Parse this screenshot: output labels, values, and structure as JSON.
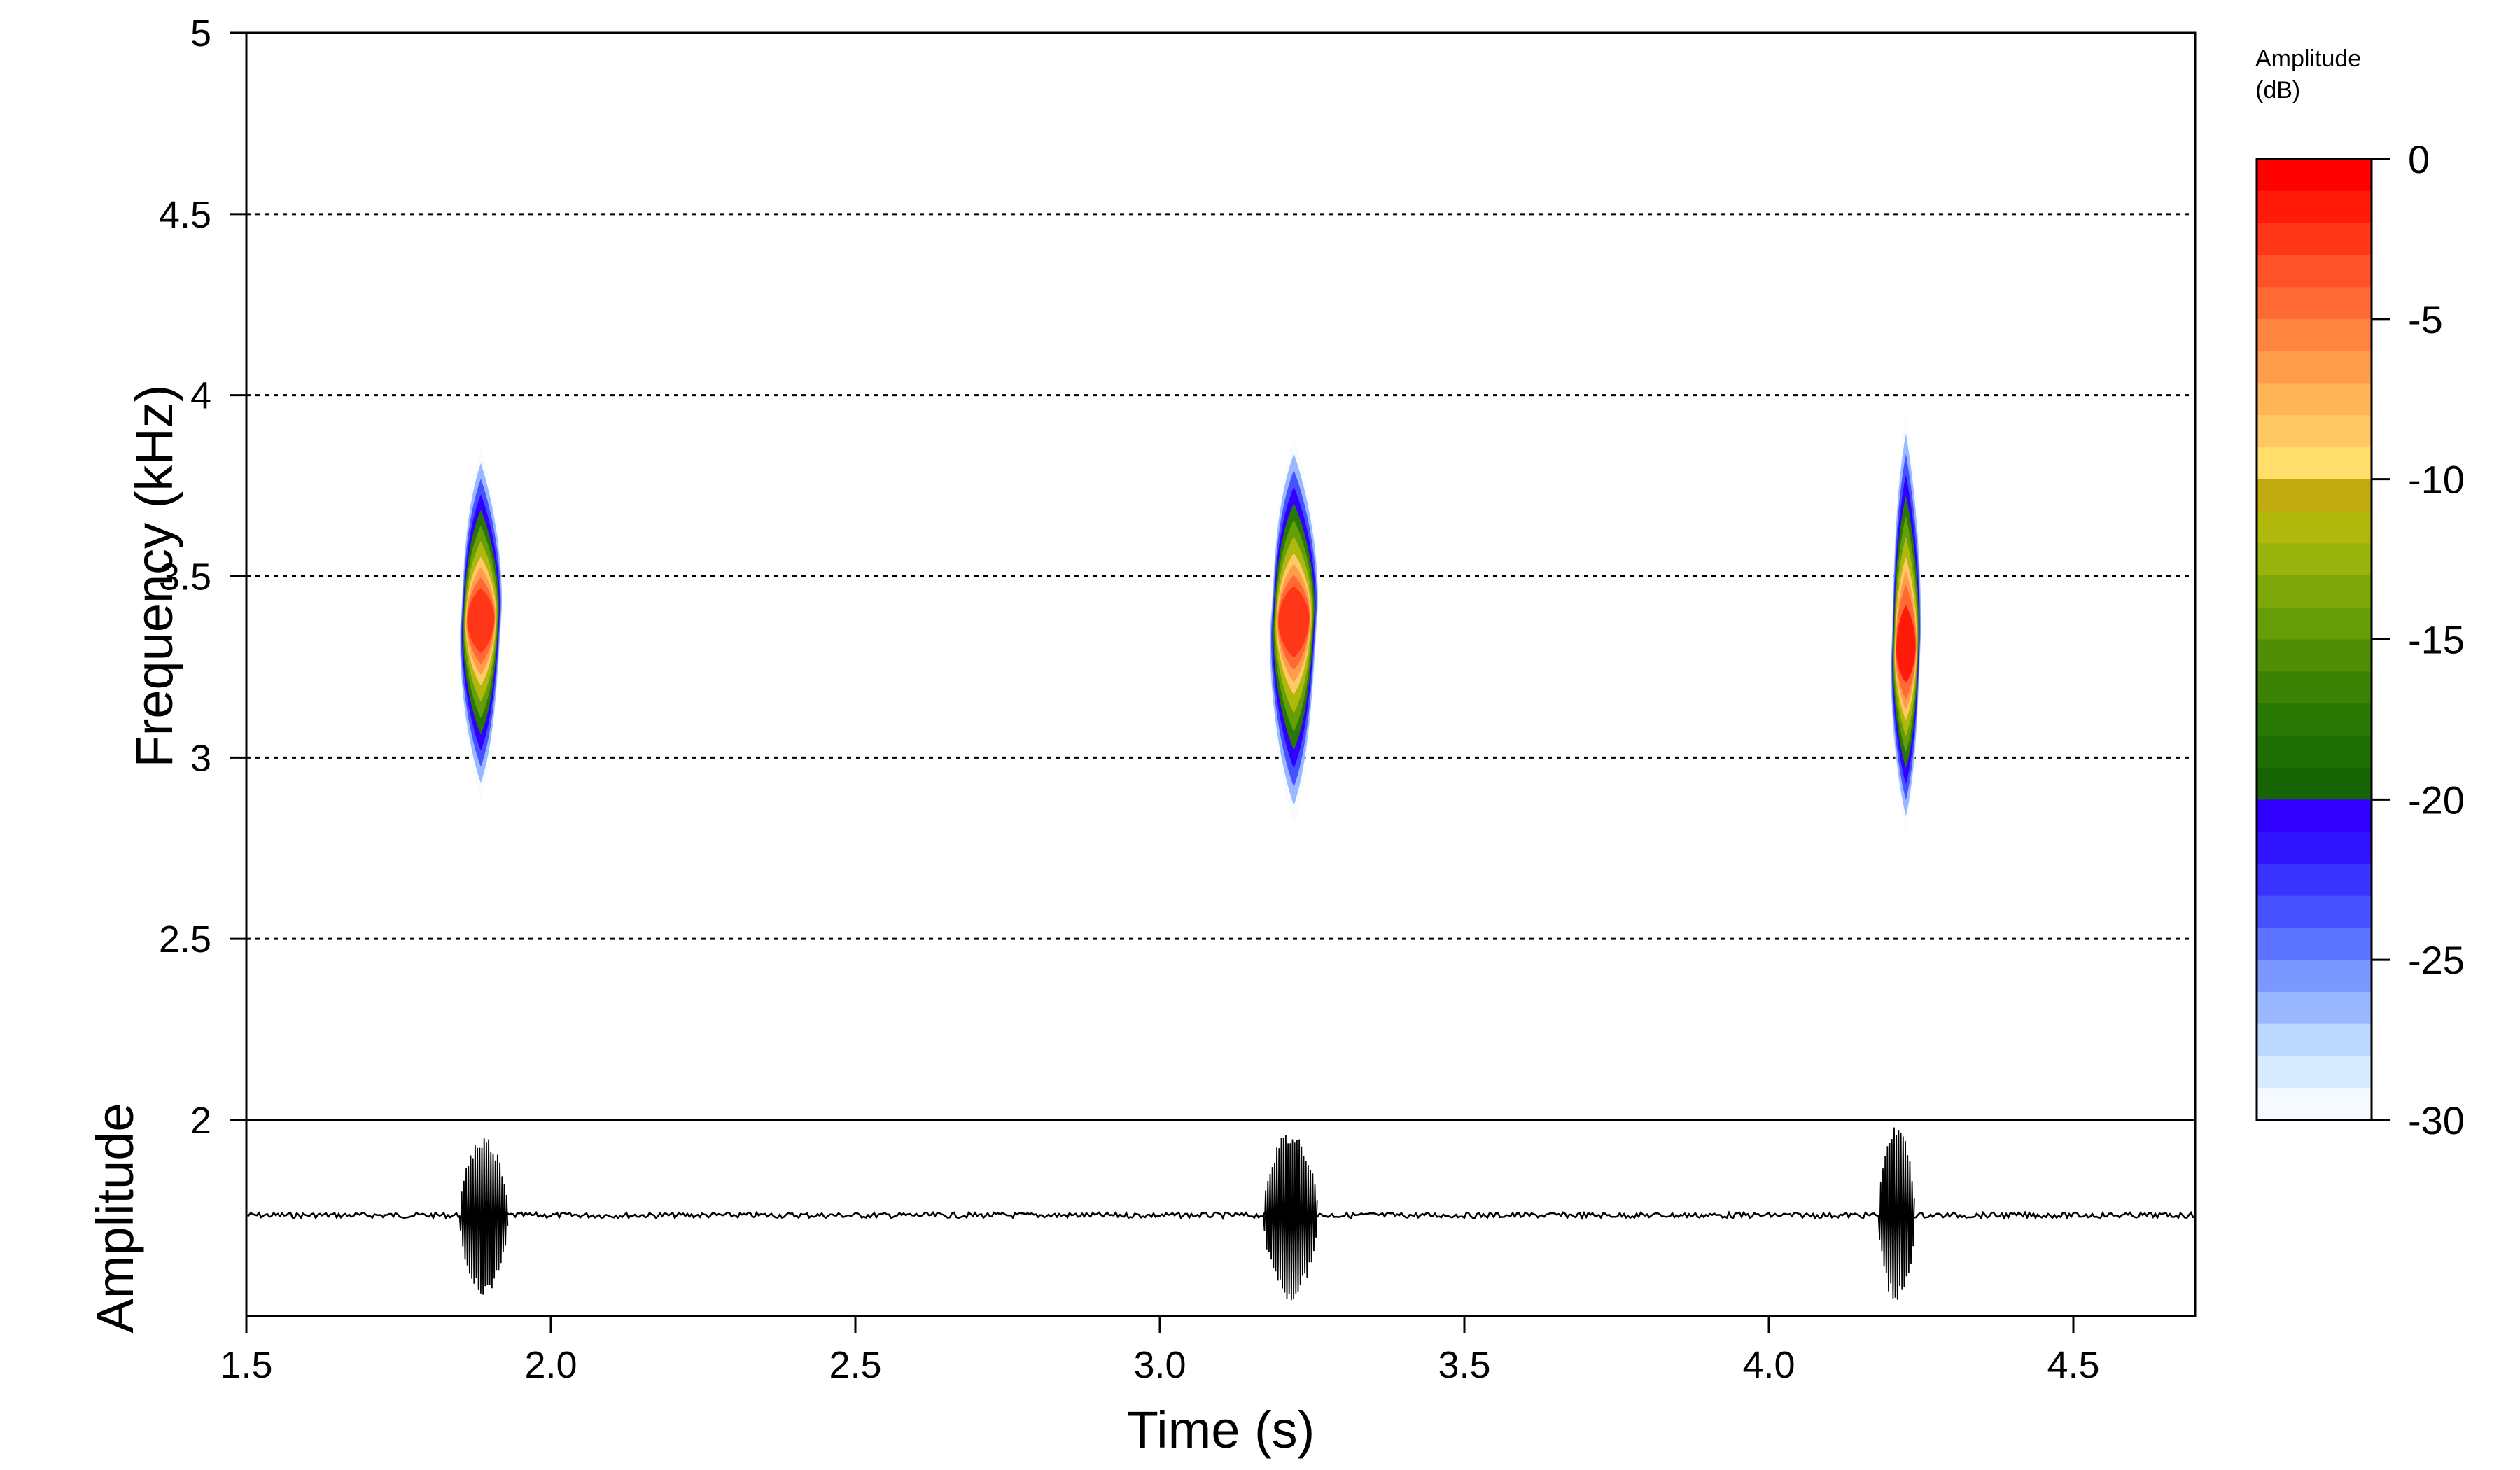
{
  "chart_data": {
    "type": "spectrogram",
    "components": [
      "spectrogram",
      "oscillogram",
      "colorbar"
    ],
    "x": {
      "label": "Time (s)",
      "range": [
        1.5,
        4.7
      ],
      "ticks": [
        1.5,
        2.0,
        2.5,
        3.0,
        3.5,
        4.0,
        4.5
      ],
      "tick_labels": [
        "1.5",
        "2.0",
        "2.5",
        "3.0",
        "3.5",
        "4.0",
        "4.5"
      ]
    },
    "spectrogram": {
      "ylabel": "Frequency (kHz)",
      "ylim": [
        2,
        5
      ],
      "yticks": [
        2,
        2.5,
        3,
        3.5,
        4,
        4.5,
        5
      ],
      "ytick_labels": [
        "2",
        "2.5",
        "3",
        "3.5",
        "4",
        "4.5",
        "5"
      ],
      "grid": "horizontal dotted lines at 2.5, 3, 3.5, 4, 4.5 kHz",
      "calls": [
        {
          "t_start": 1.85,
          "t_end": 1.92,
          "t_center": 1.885,
          "f_low": 2.87,
          "f_high": 3.87,
          "f_peak": 3.38,
          "peak_db": -2
        },
        {
          "t_start": 3.18,
          "t_end": 3.26,
          "t_center": 3.22,
          "f_low": 2.8,
          "f_high": 3.9,
          "f_peak": 3.38,
          "peak_db": -2
        },
        {
          "t_start": 4.2,
          "t_end": 4.25,
          "t_center": 4.225,
          "f_low": 2.78,
          "f_high": 3.97,
          "f_peak": 3.3,
          "peak_db": -1
        }
      ]
    },
    "oscillogram": {
      "ylabel": "Amplitude",
      "baseline": "continuous low-level noise",
      "bursts": [
        {
          "t_start": 1.85,
          "t_end": 1.93,
          "relative_amplitude": 0.9
        },
        {
          "t_start": 3.17,
          "t_end": 3.26,
          "relative_amplitude": 0.95
        },
        {
          "t_start": 4.18,
          "t_end": 4.24,
          "relative_amplitude": 1.0
        }
      ]
    },
    "colorbar": {
      "title_line1": "Amplitude",
      "title_line2": "(dB)",
      "range": [
        -30,
        0
      ],
      "ticks": [
        0,
        -5,
        -10,
        -15,
        -20,
        -25,
        -30
      ],
      "tick_labels": [
        "0",
        "-5",
        "-10",
        "-15",
        "-20",
        "-25",
        "-30"
      ],
      "colors_top_to_bottom": [
        "#ff0000",
        "#ff1a0a",
        "#ff3618",
        "#ff5228",
        "#ff6a34",
        "#ff8440",
        "#ff9c4c",
        "#ffb458",
        "#ffc864",
        "#ffde6c",
        "#c0aa10",
        "#b0b80c",
        "#98b40c",
        "#7ea80a",
        "#669e08",
        "#508e06",
        "#3c8204",
        "#2a7804",
        "#1e6e04",
        "#166404",
        "#3000ff",
        "#3014ff",
        "#3a32ff",
        "#4652ff",
        "#5c74ff",
        "#7a98ff",
        "#9ab8ff",
        "#bcd8ff",
        "#d8ecff",
        "#f4faff"
      ]
    }
  }
}
